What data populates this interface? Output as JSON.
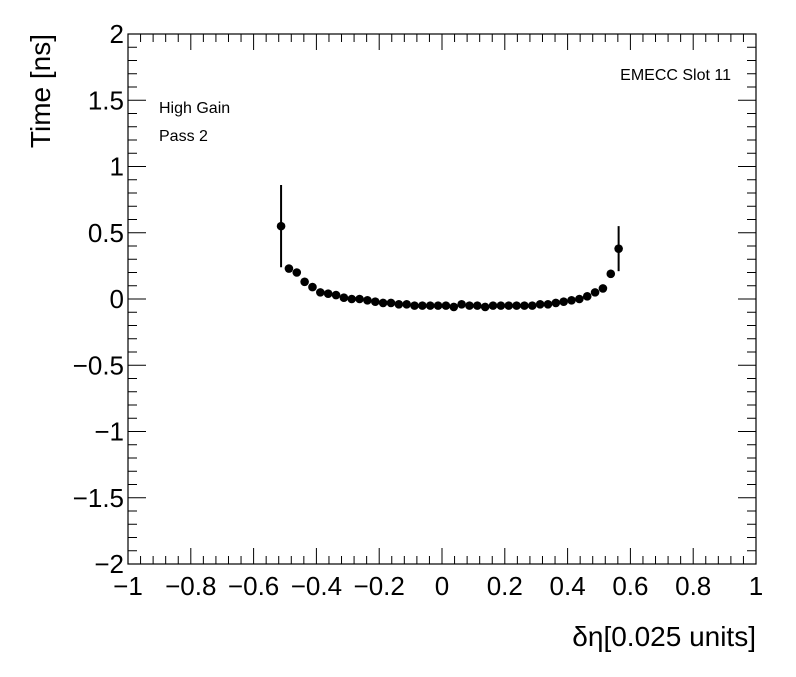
{
  "chart_data": {
    "type": "scatter",
    "xlabel": "δη[0.025 units]",
    "ylabel": "Time [ns]",
    "xlim": [
      -1,
      1
    ],
    "ylim": [
      -2,
      2
    ],
    "x_ticks": [
      -1,
      -0.8,
      -0.6,
      -0.4,
      -0.2,
      0,
      0.2,
      0.4,
      0.6,
      0.8,
      1
    ],
    "x_tick_labels": [
      "−1",
      "−0.8",
      "−0.6",
      "−0.4",
      "−0.2",
      "0",
      "0.2",
      "0.4",
      "0.6",
      "0.8",
      "1"
    ],
    "y_ticks": [
      -2,
      -1.5,
      -1,
      -0.5,
      0,
      0.5,
      1,
      1.5,
      2
    ],
    "y_tick_labels": [
      "−2",
      "−1.5",
      "−1",
      "−0.5",
      "0",
      "0.5",
      "1",
      "1.5",
      "2"
    ],
    "grid": false,
    "marker_color": "#000000",
    "annotations": {
      "slot": "EMECC Slot 11",
      "gain": "High Gain",
      "pass": "Pass 2"
    },
    "series": [
      {
        "x": [
          -0.5125,
          -0.4875,
          -0.4625,
          -0.4375,
          -0.4125,
          -0.3875,
          -0.3625,
          -0.3375,
          -0.3125,
          -0.2875,
          -0.2625,
          -0.2375,
          -0.2125,
          -0.1875,
          -0.1625,
          -0.1375,
          -0.1125,
          -0.0875,
          -0.0625,
          -0.0375,
          -0.0125,
          0.0125,
          0.0375,
          0.0625,
          0.0875,
          0.1125,
          0.1375,
          0.1625,
          0.1875,
          0.2125,
          0.2375,
          0.2625,
          0.2875,
          0.3125,
          0.3375,
          0.3625,
          0.3875,
          0.4125,
          0.4375,
          0.4625,
          0.4875,
          0.5125,
          0.5375,
          0.5625
        ],
        "y": [
          0.55,
          0.23,
          0.2,
          0.13,
          0.09,
          0.05,
          0.04,
          0.03,
          0.01,
          0.0,
          0.0,
          -0.01,
          -0.02,
          -0.03,
          -0.03,
          -0.04,
          -0.04,
          -0.05,
          -0.05,
          -0.05,
          -0.05,
          -0.05,
          -0.06,
          -0.04,
          -0.05,
          -0.05,
          -0.06,
          -0.05,
          -0.05,
          -0.05,
          -0.05,
          -0.05,
          -0.05,
          -0.04,
          -0.04,
          -0.03,
          -0.02,
          -0.01,
          0.0,
          0.02,
          0.05,
          0.08,
          0.19,
          0.38
        ],
        "yerr": [
          0.31,
          0.02,
          0.02,
          0.02,
          0.01,
          0.01,
          0.01,
          0.01,
          0.01,
          0.01,
          0.01,
          0.01,
          0.01,
          0.01,
          0.01,
          0.01,
          0.01,
          0.01,
          0.01,
          0.01,
          0.01,
          0.01,
          0.01,
          0.01,
          0.01,
          0.01,
          0.01,
          0.01,
          0.01,
          0.01,
          0.01,
          0.01,
          0.01,
          0.01,
          0.01,
          0.01,
          0.01,
          0.01,
          0.01,
          0.01,
          0.02,
          0.02,
          0.03,
          0.17
        ]
      }
    ]
  }
}
